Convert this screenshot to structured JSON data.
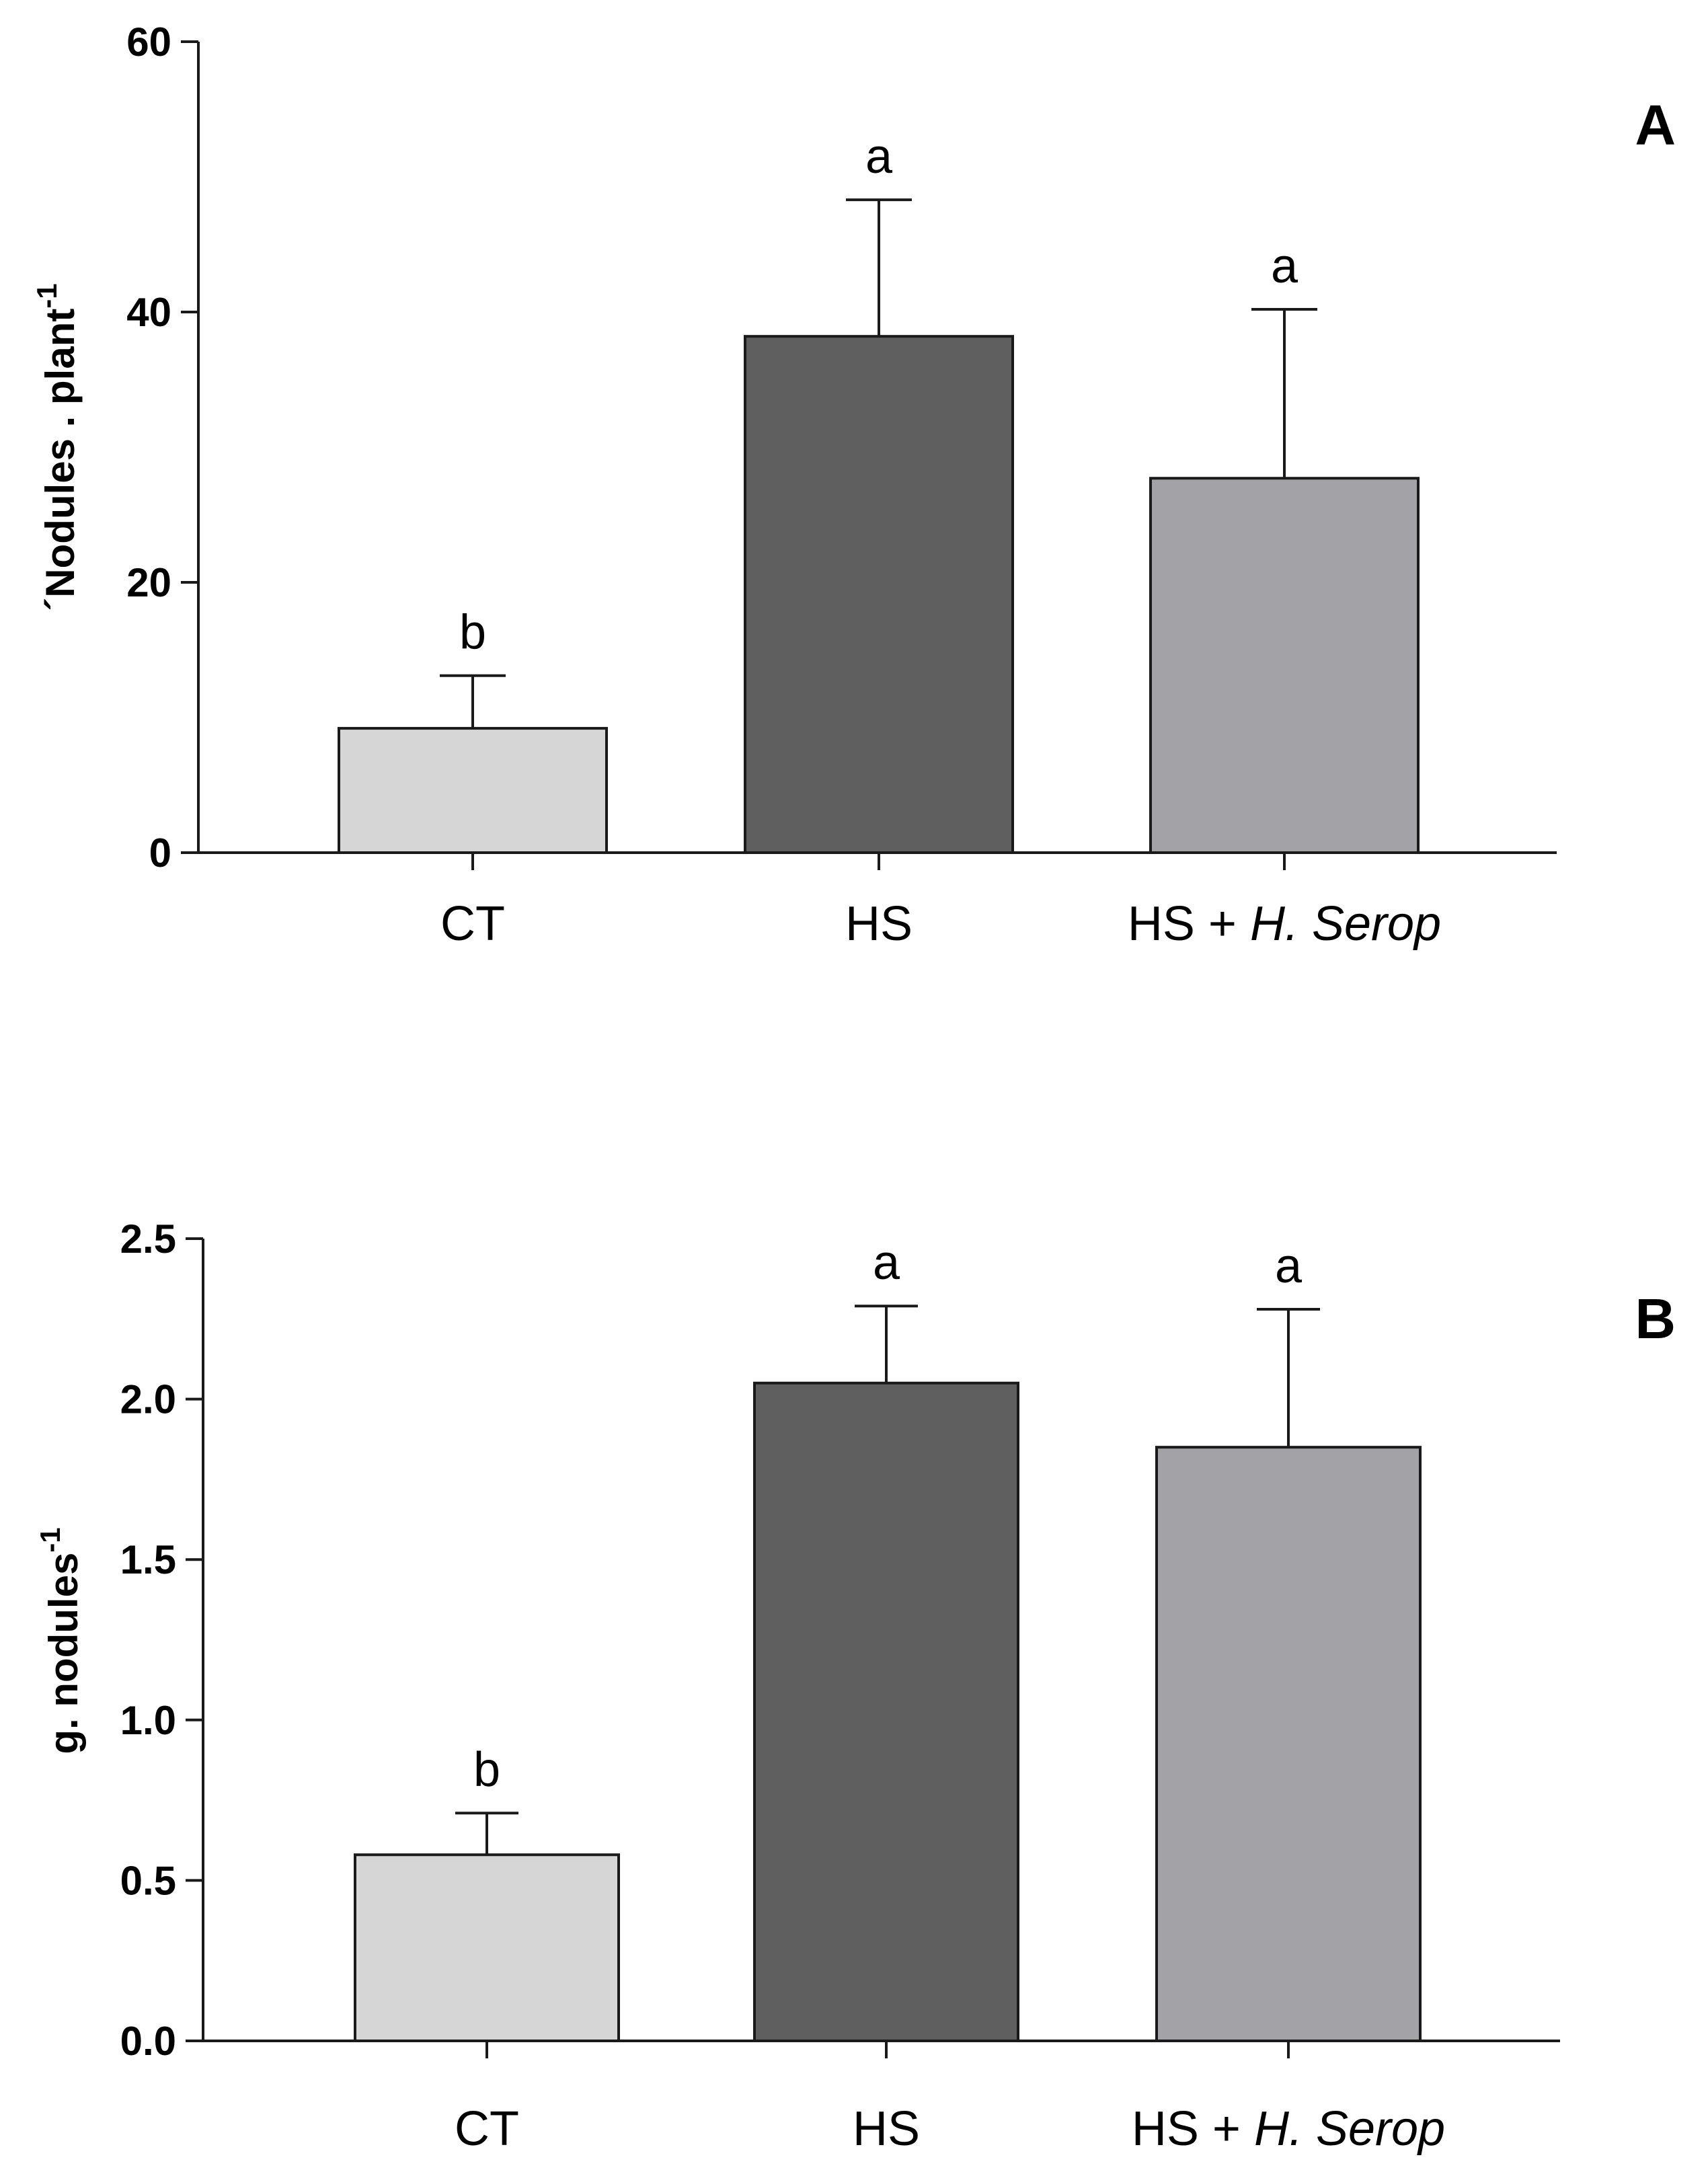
{
  "chart_data": [
    {
      "type": "bar",
      "panel_label": "A",
      "ylabel": "´Nodules . plant",
      "ylabel_sup": "-1",
      "categories": [
        {
          "base": "CT",
          "italic": ""
        },
        {
          "base": "HS",
          "italic": ""
        },
        {
          "base": "HS + ",
          "italic": "H. Serop"
        }
      ],
      "values": [
        9.2,
        38.2,
        27.7
      ],
      "errors": [
        3.9,
        10.1,
        12.5
      ],
      "significance": [
        "b",
        "a",
        "a"
      ],
      "colors": [
        "#d6d6d6",
        "#5f5f5f",
        "#a3a2a7"
      ],
      "ylim": [
        0,
        60
      ],
      "yticks": [
        0,
        20,
        40,
        60
      ],
      "ytick_labels": [
        "0",
        "20",
        "40",
        "60"
      ]
    },
    {
      "type": "bar",
      "panel_label": "B",
      "ylabel": "g. nodules",
      "ylabel_sup": "-1",
      "categories": [
        {
          "base": "CT",
          "italic": ""
        },
        {
          "base": "HS",
          "italic": ""
        },
        {
          "base": "HS + ",
          "italic": "H. Serop"
        }
      ],
      "values": [
        0.58,
        2.05,
        1.85
      ],
      "errors": [
        0.13,
        0.24,
        0.43
      ],
      "significance": [
        "b",
        "a",
        "a"
      ],
      "colors": [
        "#d6d6d6",
        "#5f5f5f",
        "#a3a2a7"
      ],
      "ylim": [
        0,
        2.5
      ],
      "yticks": [
        0,
        0.5,
        1.0,
        1.5,
        2.0,
        2.5
      ],
      "ytick_labels": [
        "0.0",
        "0.5",
        "1.0",
        "1.5",
        "2.0",
        "2.5"
      ]
    }
  ]
}
